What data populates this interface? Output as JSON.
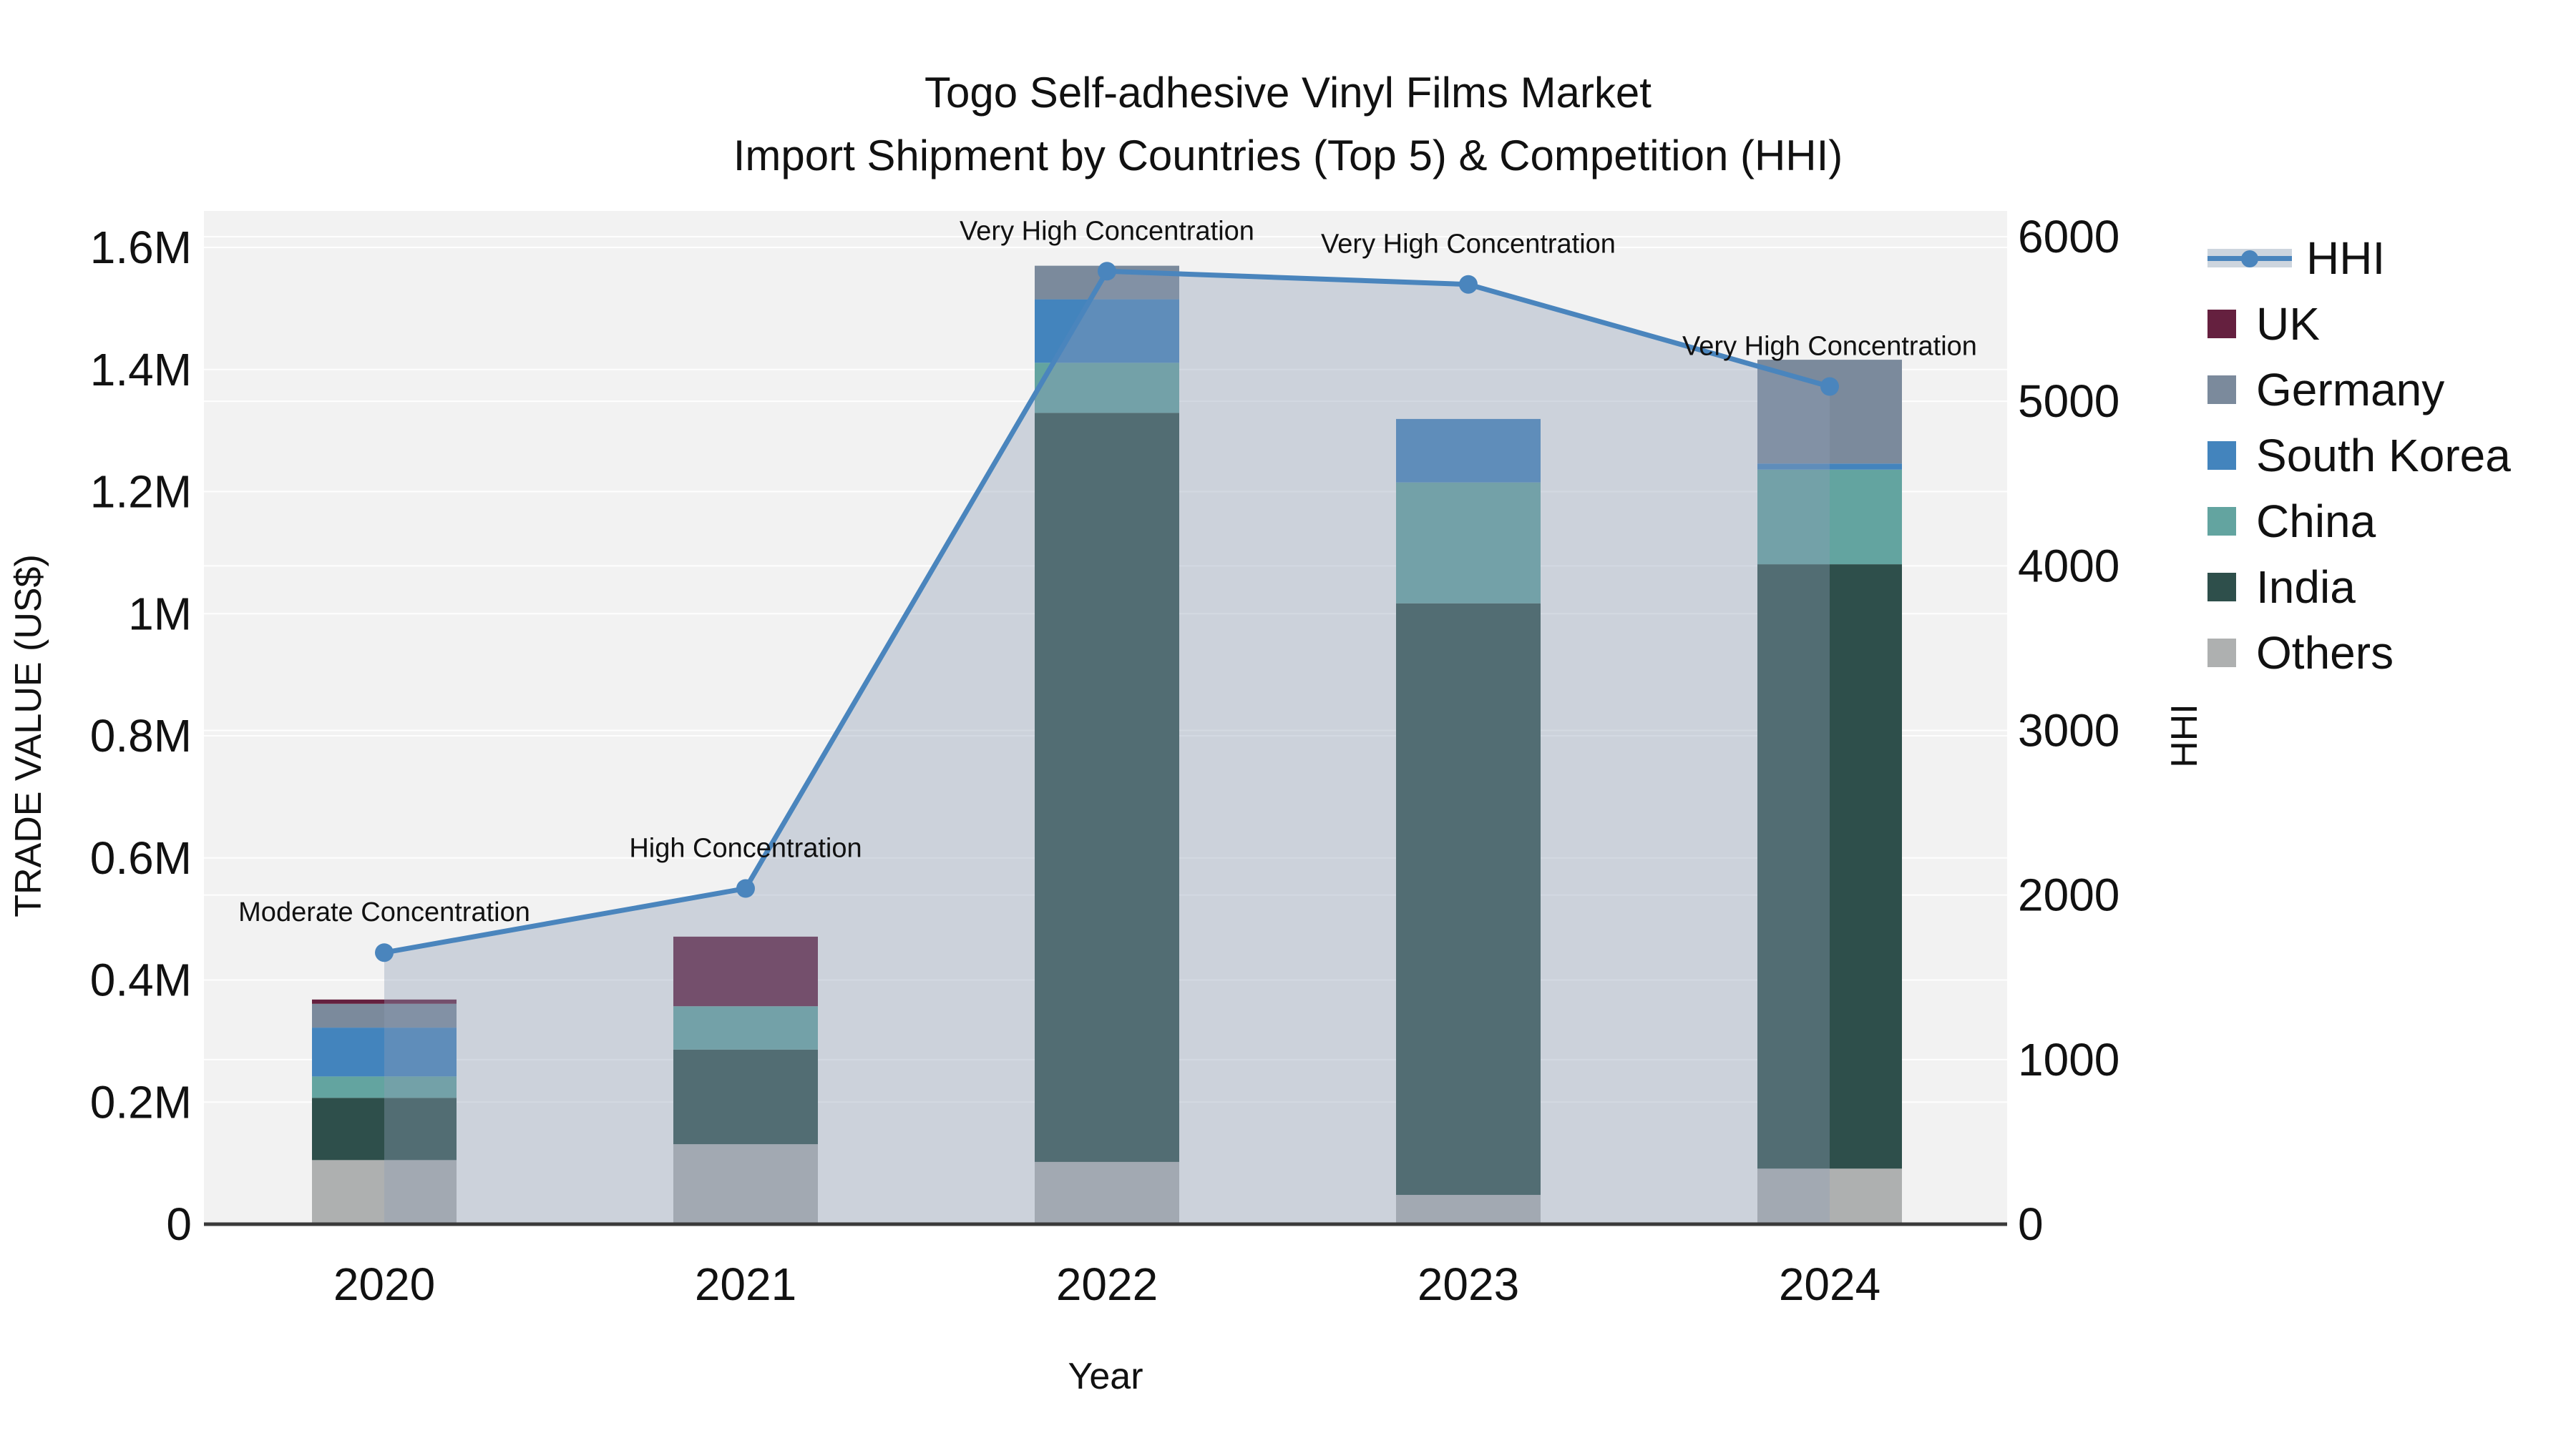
{
  "title": {
    "line1": "Togo Self-adhesive Vinyl Films Market",
    "line2": "Import Shipment by Countries (Top 5) & Competition (HHI)"
  },
  "axes": {
    "x": {
      "title": "Year",
      "categories": [
        "2020",
        "2021",
        "2022",
        "2023",
        "2024"
      ]
    },
    "y_left": {
      "title": "TRADE VALUE (US$)",
      "ticks": [
        {
          "label": "0",
          "value": 0
        },
        {
          "label": "0.2M",
          "value": 200000
        },
        {
          "label": "0.4M",
          "value": 400000
        },
        {
          "label": "0.6M",
          "value": 600000
        },
        {
          "label": "0.8M",
          "value": 800000
        },
        {
          "label": "1M",
          "value": 1000000
        },
        {
          "label": "1.2M",
          "value": 1200000
        },
        {
          "label": "1.4M",
          "value": 1400000
        },
        {
          "label": "1.6M",
          "value": 1600000
        }
      ],
      "range": [
        0,
        1600000
      ]
    },
    "y_right": {
      "title": "HHI",
      "ticks": [
        {
          "label": "0",
          "value": 0
        },
        {
          "label": "1000",
          "value": 1000
        },
        {
          "label": "2000",
          "value": 2000
        },
        {
          "label": "3000",
          "value": 3000
        },
        {
          "label": "4000",
          "value": 4000
        },
        {
          "label": "5000",
          "value": 5000
        },
        {
          "label": "6000",
          "value": 6000
        }
      ],
      "range": [
        0,
        6000
      ]
    }
  },
  "legend": {
    "items": [
      {
        "label": "HHI",
        "type": "line",
        "color": "#4a85bd"
      },
      {
        "label": "UK",
        "type": "swatch",
        "color": "#65203f"
      },
      {
        "label": "Germany",
        "type": "swatch",
        "color": "#7b8a9c"
      },
      {
        "label": "South Korea",
        "type": "swatch",
        "color": "#4384bd"
      },
      {
        "label": "China",
        "type": "swatch",
        "color": "#63a4a0"
      },
      {
        "label": "India",
        "type": "swatch",
        "color": "#2e4f4b"
      },
      {
        "label": "Others",
        "type": "swatch",
        "color": "#aeb0b0"
      }
    ]
  },
  "chart_data": {
    "type": "bar",
    "stacked": true,
    "title": "Togo Self-adhesive Vinyl Films Market — Import Shipment by Countries (Top 5) & Competition (HHI)",
    "xlabel": "Year",
    "ylabel": "TRADE VALUE (US$)",
    "ylabel_right": "HHI",
    "categories": [
      "2020",
      "2021",
      "2022",
      "2023",
      "2024"
    ],
    "ylim_left": [
      0,
      1600000
    ],
    "ylim_right": [
      0,
      6000
    ],
    "grid": true,
    "legend_position": "right",
    "series": [
      {
        "name": "Others",
        "color": "#aeb0b0",
        "values": [
          105000,
          131000,
          102000,
          48000,
          91000
        ]
      },
      {
        "name": "India",
        "color": "#2e4f4b",
        "values": [
          102000,
          155000,
          1227000,
          969000,
          990000
        ]
      },
      {
        "name": "China",
        "color": "#63a4a0",
        "values": [
          35000,
          71000,
          82000,
          198000,
          155000
        ]
      },
      {
        "name": "South Korea",
        "color": "#4384bd",
        "values": [
          80000,
          0,
          104000,
          104000,
          10000
        ]
      },
      {
        "name": "Germany",
        "color": "#7b8a9c",
        "values": [
          39000,
          0,
          55000,
          0,
          170000
        ]
      },
      {
        "name": "UK",
        "color": "#65203f",
        "values": [
          7000,
          114000,
          0,
          0,
          0
        ]
      }
    ],
    "line_series": {
      "name": "HHI",
      "axis": "right",
      "color": "#4a85bd",
      "area_fill": "#8d9fb5",
      "area_opacity": 0.38,
      "values": [
        1650,
        2040,
        5790,
        5710,
        5090
      ]
    },
    "annotations": [
      {
        "category": "2020",
        "text": "Moderate Concentration"
      },
      {
        "category": "2021",
        "text": "High Concentration"
      },
      {
        "category": "2022",
        "text": "Very High Concentration"
      },
      {
        "category": "2023",
        "text": "Very High Concentration"
      },
      {
        "category": "2024",
        "text": "Very High Concentration"
      }
    ]
  },
  "colors": {
    "plot_background": "#f2f2f2",
    "gridline": "#ffffff",
    "axis_line": "#3a3a3a",
    "text": "#111111"
  }
}
